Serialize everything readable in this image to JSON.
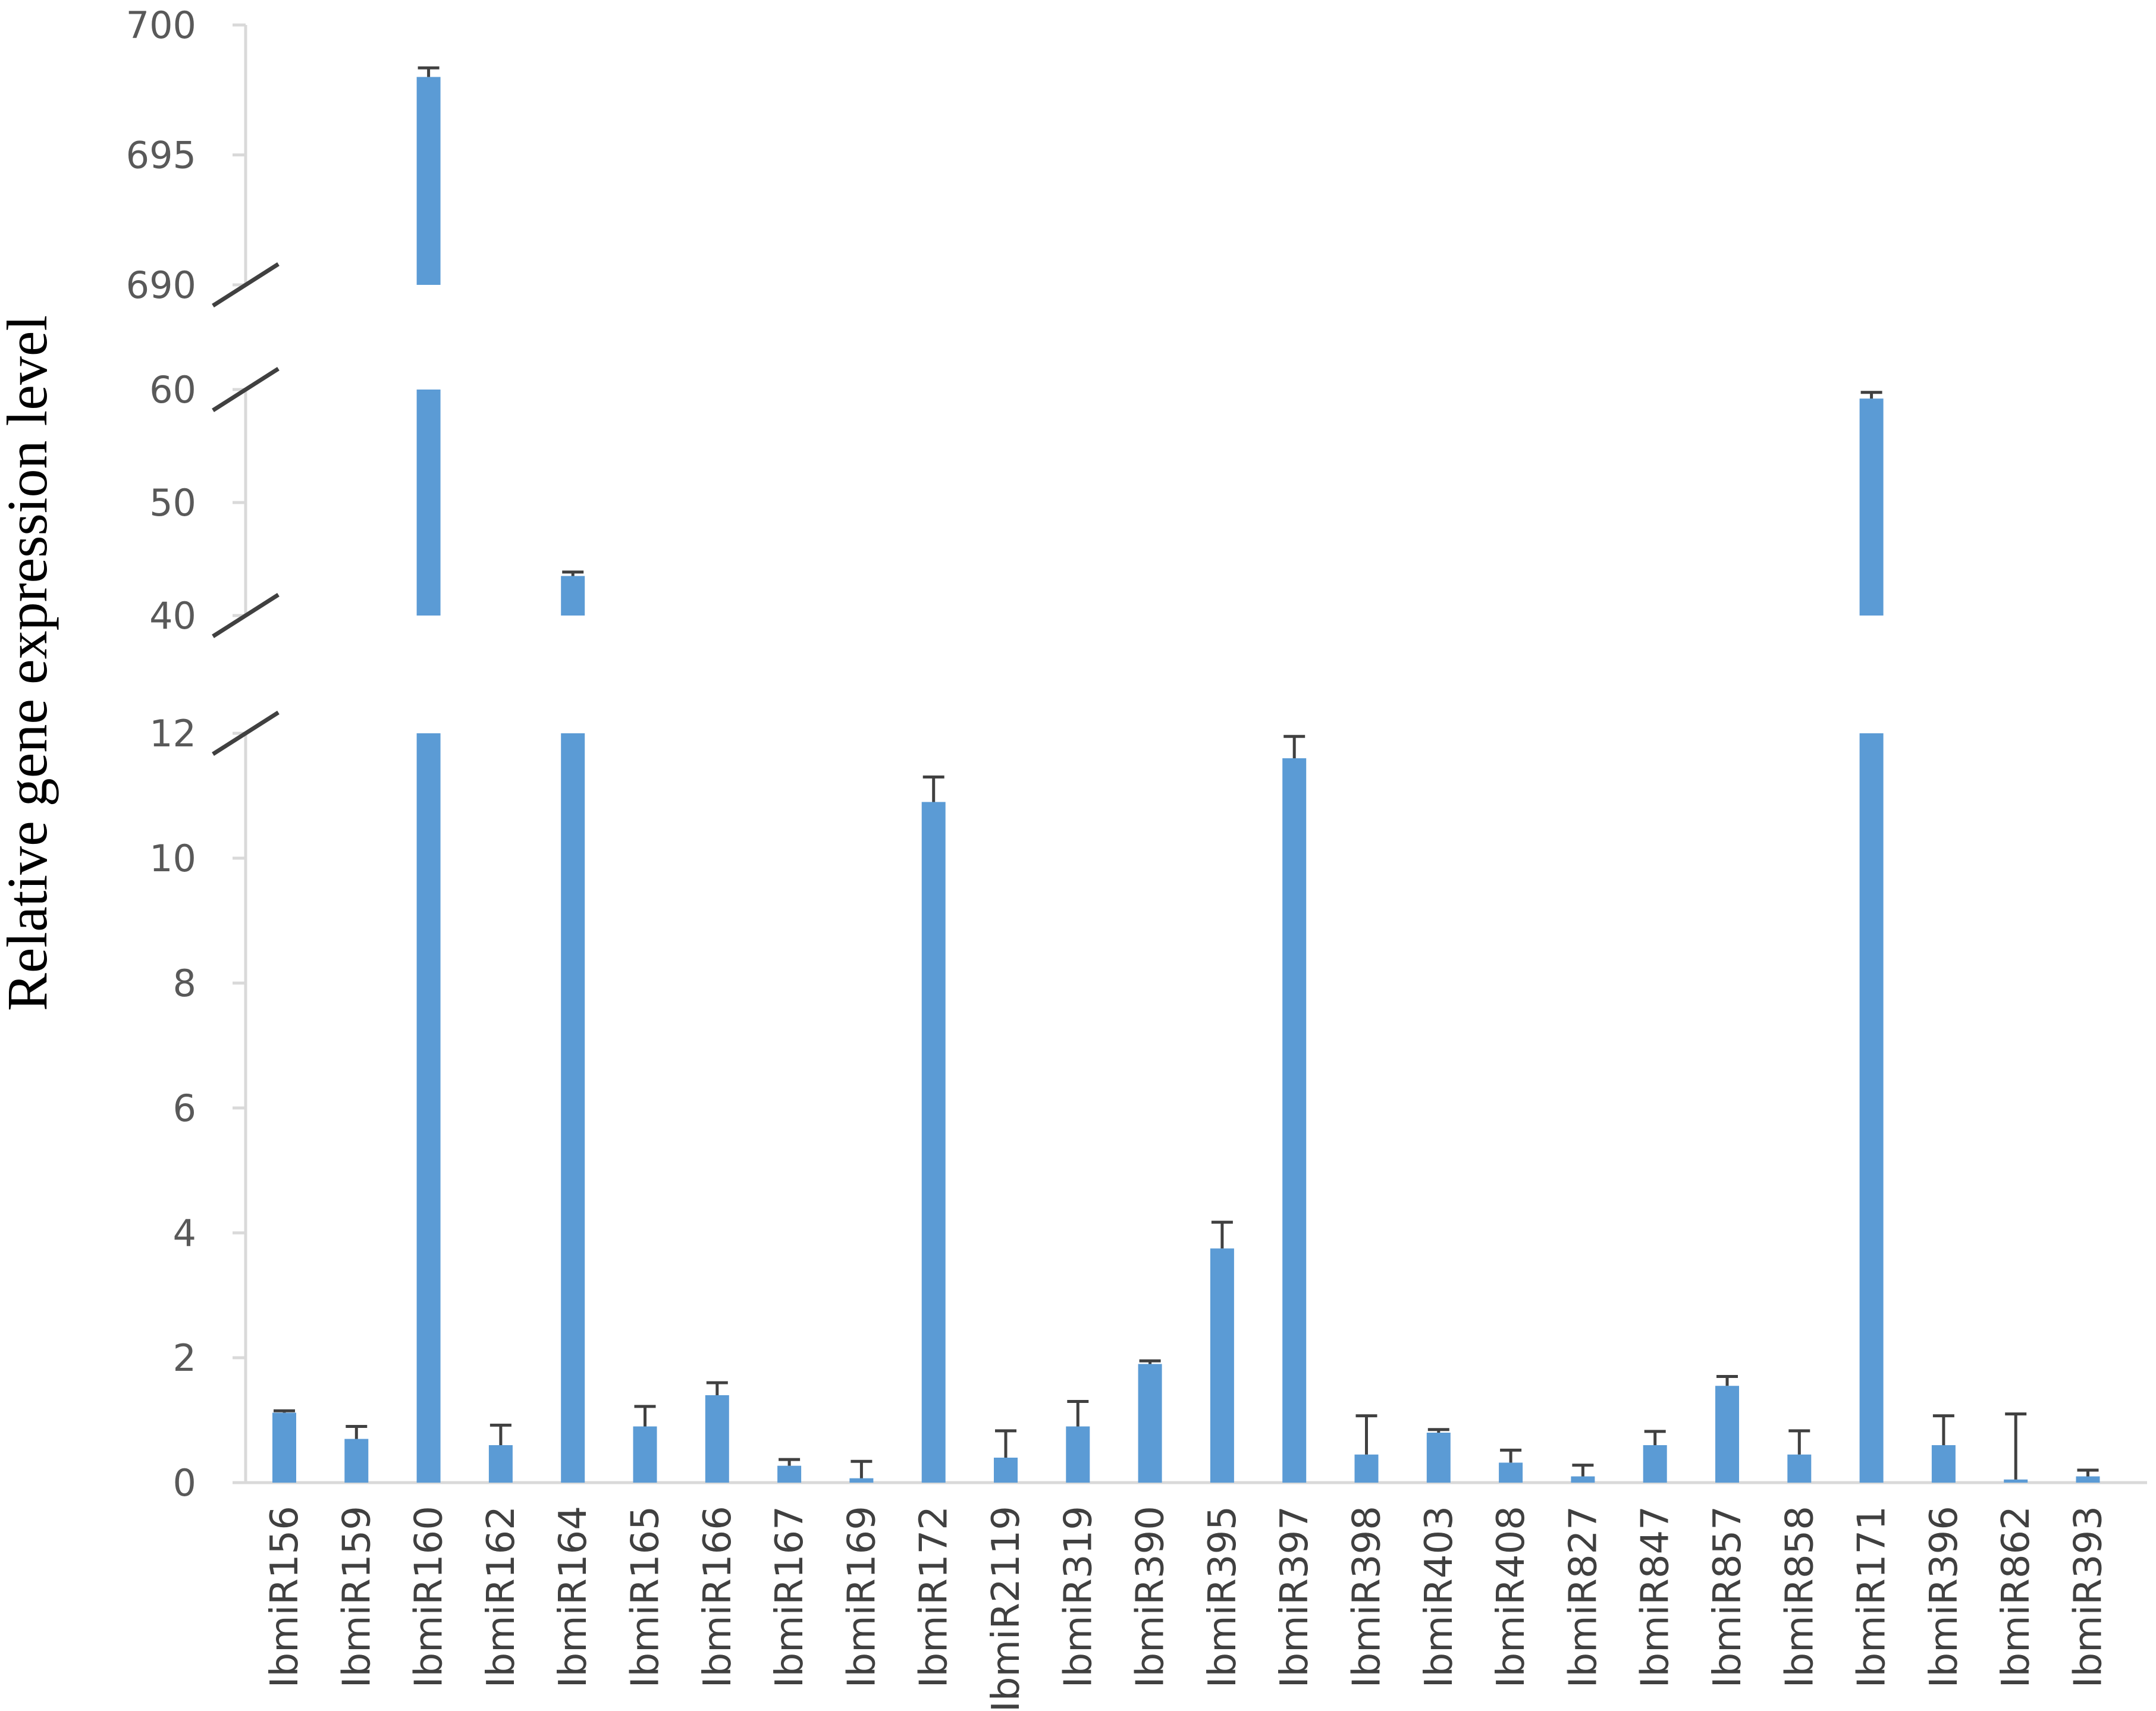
{
  "chart_data": {
    "type": "bar",
    "ylabel": "Relative gene expression level",
    "xlabel": "",
    "title": "",
    "bar_color": "#5b9bd5",
    "error_color": "#404040",
    "axis_color": "#d9d9d9",
    "grid": false,
    "y_axis_breaks": [
      [
        12,
        40
      ],
      [
        60,
        690
      ]
    ],
    "y_segments": [
      {
        "range": [
          0,
          12
        ],
        "ticks": [
          0,
          2,
          4,
          6,
          8,
          10,
          12
        ]
      },
      {
        "range": [
          40,
          60
        ],
        "ticks": [
          40,
          50,
          60
        ]
      },
      {
        "range": [
          690,
          700
        ],
        "ticks": [
          690,
          695,
          700
        ]
      }
    ],
    "categories": [
      "IbmiR156",
      "IbmiR159",
      "IbmiR160",
      "IbmiR162",
      "IbmiR164",
      "IbmiR165",
      "IbmiR166",
      "IbmiR167",
      "IbmiR169",
      "IbmiR172",
      "IbmiR2119",
      "IbmiR319",
      "IbmiR390",
      "IbmiR395",
      "IbmiR397",
      "IbmiR398",
      "IbmiR403",
      "IbmiR408",
      "IbmiR827",
      "IbmiR847",
      "IbmiR857",
      "IbmiR858",
      "IbmiR171",
      "IbmiR396",
      "IbmiR862",
      "IbmiR393"
    ],
    "values": [
      1.12,
      0.7,
      698.0,
      0.6,
      43.5,
      0.9,
      1.4,
      0.27,
      0.07,
      10.9,
      0.4,
      0.9,
      1.9,
      3.75,
      11.6,
      0.45,
      0.8,
      0.32,
      0.1,
      0.6,
      1.55,
      0.45,
      59.2,
      0.6,
      0.05,
      0.1
    ],
    "errors": [
      0.03,
      0.2,
      0.35,
      0.32,
      0.35,
      0.32,
      0.2,
      0.1,
      0.27,
      0.4,
      0.43,
      0.4,
      0.05,
      0.42,
      0.35,
      0.62,
      0.05,
      0.2,
      0.18,
      0.22,
      0.15,
      0.38,
      0.55,
      0.47,
      1.05,
      0.1
    ]
  }
}
